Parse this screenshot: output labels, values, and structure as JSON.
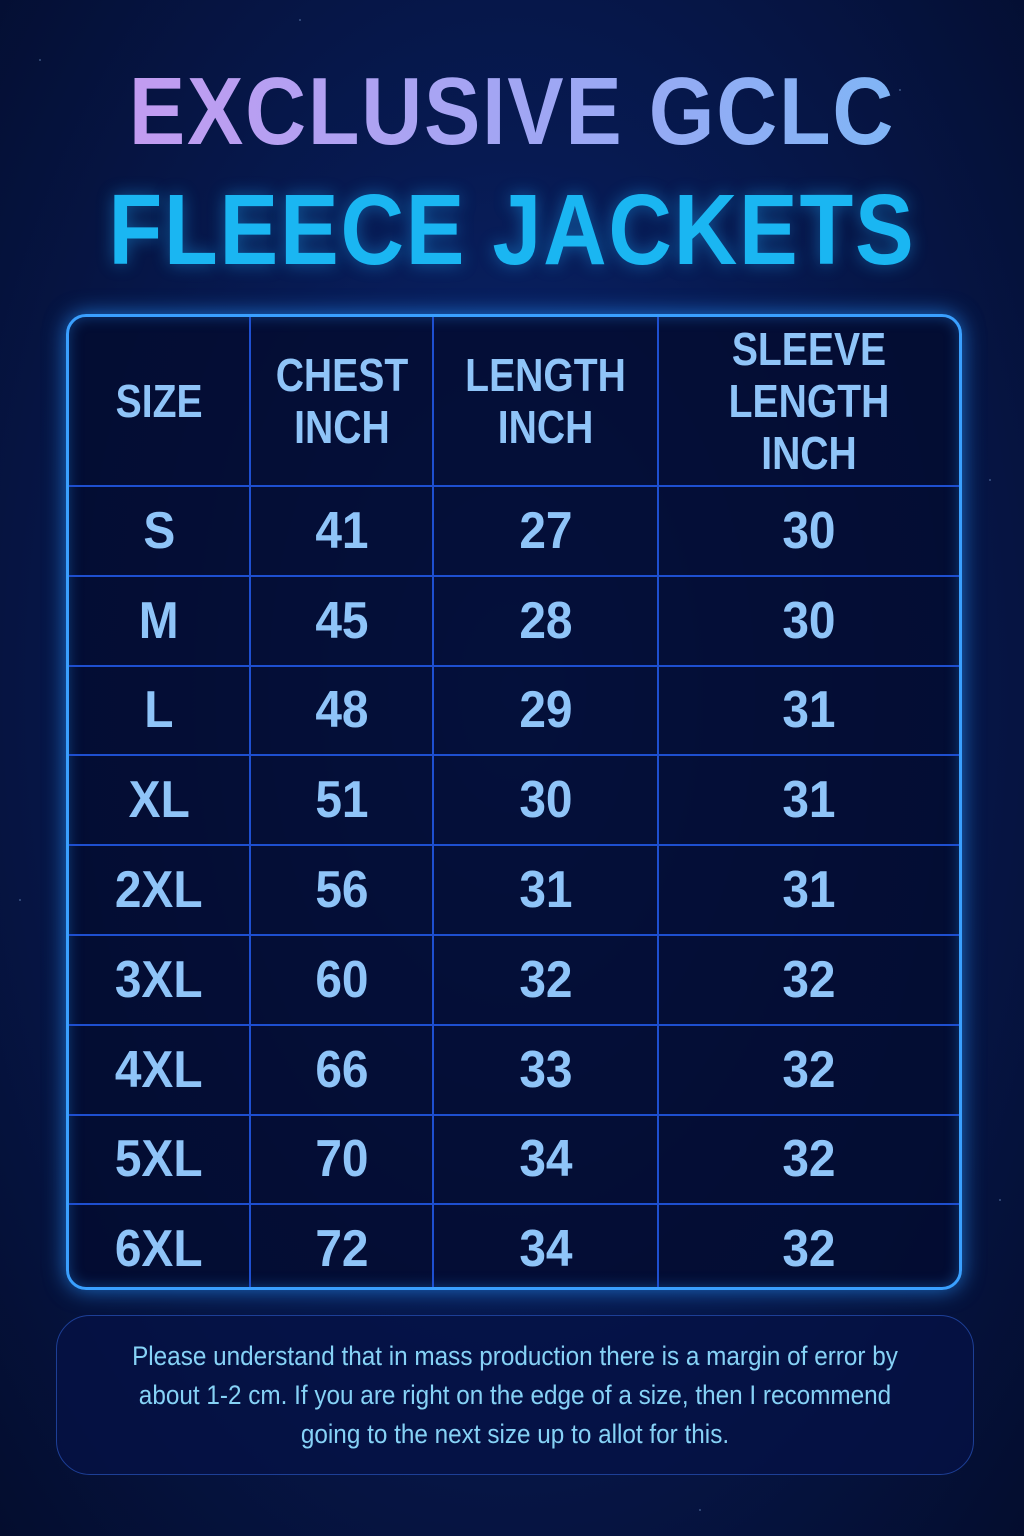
{
  "title": {
    "line1": "EXCLUSIVE GCLC",
    "line2": "FLEECE JACKETS"
  },
  "colors": {
    "title_line2": "#1ab6f2",
    "table_border": "#3aa0ff",
    "grid": "#1e4fd0",
    "text": "#8fc4f8"
  },
  "table": {
    "headers": [
      [
        "SIZE"
      ],
      [
        "CHEST",
        "INCH"
      ],
      [
        "LENGTH",
        "INCH"
      ],
      [
        "SLEEVE",
        "LENGTH INCH"
      ]
    ],
    "rows": [
      [
        "S",
        "41",
        "27",
        "30"
      ],
      [
        "M",
        "45",
        "28",
        "30"
      ],
      [
        "L",
        "48",
        "29",
        "31"
      ],
      [
        "XL",
        "51",
        "30",
        "31"
      ],
      [
        "2XL",
        "56",
        "31",
        "31"
      ],
      [
        "3XL",
        "60",
        "32",
        "32"
      ],
      [
        "4XL",
        "66",
        "33",
        "32"
      ],
      [
        "5XL",
        "70",
        "34",
        "32"
      ],
      [
        "6XL",
        "72",
        "34",
        "32"
      ]
    ]
  },
  "note": "Please understand that in mass production there is a margin of error by about 1-2 cm. If you are right on the edge of a size, then I recommend going to the next size up to allot for this."
}
